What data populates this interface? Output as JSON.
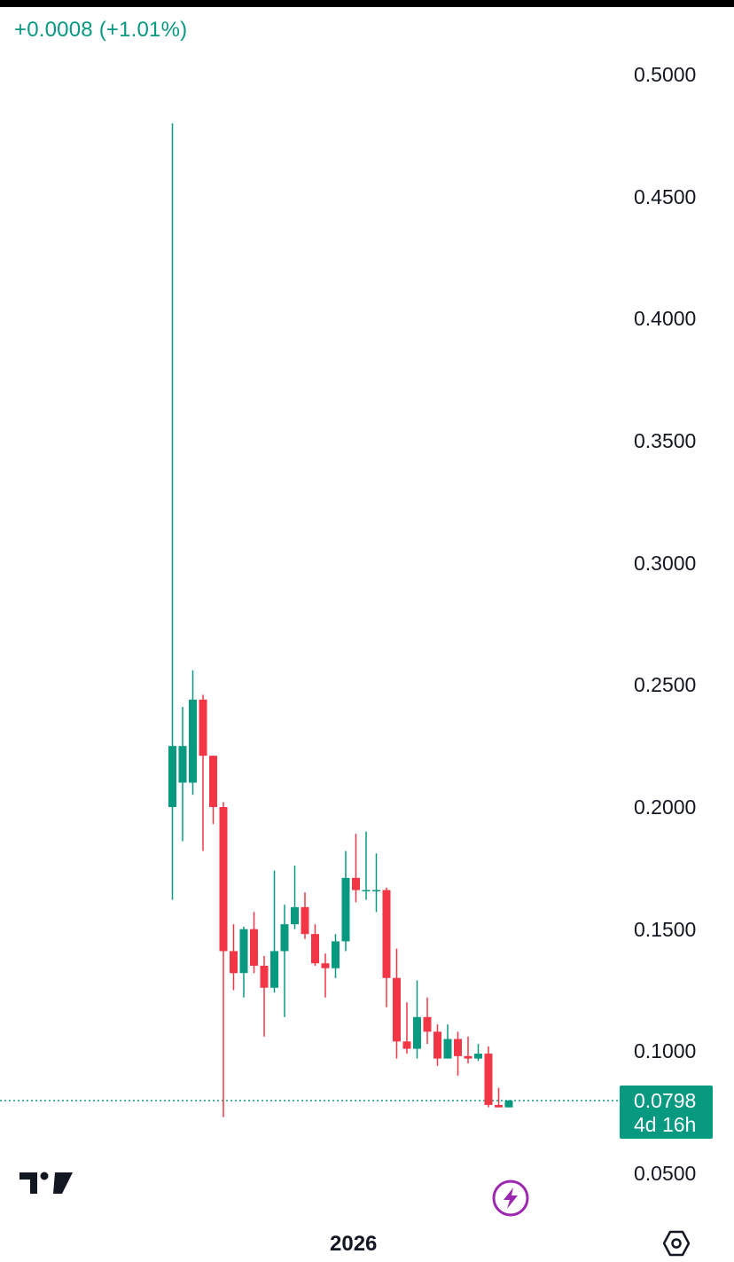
{
  "header": {
    "change_text": "+0.0008 (+1.01%)"
  },
  "price_tag": {
    "price": "0.0798",
    "countdown": "4d 16h"
  },
  "colors": {
    "up": "#089981",
    "down": "#f23645",
    "text": "#131722",
    "accent": "#9c27b0"
  },
  "icons": {
    "logo": "tradingview-logo-icon",
    "bolt": "lightning-bolt-icon",
    "settings": "hexagon-settings-icon"
  },
  "chart_data": {
    "type": "candlestick",
    "ylim": [
      0.045,
      0.52
    ],
    "y_ticks": [
      "0.5000",
      "0.4500",
      "0.4000",
      "0.3500",
      "0.3000",
      "0.2500",
      "0.2000",
      "0.1500",
      "0.1000",
      "0.0500"
    ],
    "x_tick_labels": [
      "2026"
    ],
    "last_price": 0.0798,
    "candles": [
      {
        "o": 0.2,
        "h": 0.48,
        "l": 0.162,
        "c": 0.225
      },
      {
        "o": 0.21,
        "h": 0.241,
        "l": 0.186,
        "c": 0.225
      },
      {
        "o": 0.21,
        "h": 0.256,
        "l": 0.205,
        "c": 0.244
      },
      {
        "o": 0.244,
        "h": 0.246,
        "l": 0.182,
        "c": 0.221
      },
      {
        "o": 0.221,
        "h": 0.221,
        "l": 0.193,
        "c": 0.2
      },
      {
        "o": 0.2,
        "h": 0.202,
        "l": 0.073,
        "c": 0.141
      },
      {
        "o": 0.141,
        "h": 0.152,
        "l": 0.125,
        "c": 0.132
      },
      {
        "o": 0.132,
        "h": 0.151,
        "l": 0.122,
        "c": 0.15
      },
      {
        "o": 0.15,
        "h": 0.157,
        "l": 0.132,
        "c": 0.135
      },
      {
        "o": 0.135,
        "h": 0.139,
        "l": 0.106,
        "c": 0.126
      },
      {
        "o": 0.126,
        "h": 0.174,
        "l": 0.124,
        "c": 0.141
      },
      {
        "o": 0.141,
        "h": 0.16,
        "l": 0.114,
        "c": 0.152
      },
      {
        "o": 0.152,
        "h": 0.176,
        "l": 0.15,
        "c": 0.159
      },
      {
        "o": 0.159,
        "h": 0.165,
        "l": 0.146,
        "c": 0.148
      },
      {
        "o": 0.148,
        "h": 0.152,
        "l": 0.135,
        "c": 0.136
      },
      {
        "o": 0.136,
        "h": 0.14,
        "l": 0.122,
        "c": 0.134
      },
      {
        "o": 0.134,
        "h": 0.148,
        "l": 0.13,
        "c": 0.145
      },
      {
        "o": 0.145,
        "h": 0.182,
        "l": 0.141,
        "c": 0.171
      },
      {
        "o": 0.171,
        "h": 0.189,
        "l": 0.161,
        "c": 0.166
      },
      {
        "o": 0.166,
        "h": 0.19,
        "l": 0.162,
        "c": 0.166
      },
      {
        "o": 0.166,
        "h": 0.181,
        "l": 0.157,
        "c": 0.166
      },
      {
        "o": 0.166,
        "h": 0.167,
        "l": 0.118,
        "c": 0.13
      },
      {
        "o": 0.13,
        "h": 0.142,
        "l": 0.097,
        "c": 0.104
      },
      {
        "o": 0.104,
        "h": 0.12,
        "l": 0.099,
        "c": 0.101
      },
      {
        "o": 0.101,
        "h": 0.129,
        "l": 0.097,
        "c": 0.114
      },
      {
        "o": 0.114,
        "h": 0.122,
        "l": 0.103,
        "c": 0.108
      },
      {
        "o": 0.108,
        "h": 0.111,
        "l": 0.094,
        "c": 0.097
      },
      {
        "o": 0.097,
        "h": 0.111,
        "l": 0.097,
        "c": 0.105
      },
      {
        "o": 0.105,
        "h": 0.108,
        "l": 0.09,
        "c": 0.098
      },
      {
        "o": 0.098,
        "h": 0.106,
        "l": 0.095,
        "c": 0.097
      },
      {
        "o": 0.097,
        "h": 0.103,
        "l": 0.096,
        "c": 0.099
      },
      {
        "o": 0.099,
        "h": 0.102,
        "l": 0.077,
        "c": 0.078
      },
      {
        "o": 0.078,
        "h": 0.085,
        "l": 0.077,
        "c": 0.077
      },
      {
        "o": 0.077,
        "h": 0.08,
        "l": 0.077,
        "c": 0.0798
      }
    ]
  }
}
